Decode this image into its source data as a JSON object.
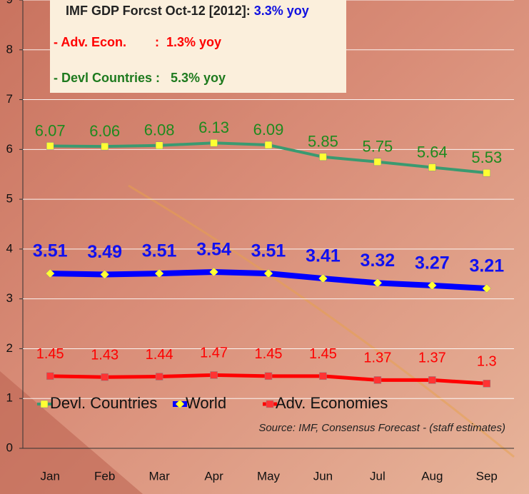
{
  "chart_data": {
    "type": "line",
    "categories": [
      "Jan",
      "Feb",
      "Mar",
      "Apr",
      "May",
      "Jun",
      "Jul",
      "Aug",
      "Sep"
    ],
    "series": [
      {
        "name": "Devl. Countries",
        "color": "#3a9a70",
        "values": [
          6.07,
          6.06,
          6.08,
          6.13,
          6.09,
          5.85,
          5.75,
          5.64,
          5.53
        ]
      },
      {
        "name": "World",
        "color": "#0000ff",
        "values": [
          3.51,
          3.49,
          3.51,
          3.54,
          3.51,
          3.41,
          3.32,
          3.27,
          3.21
        ]
      },
      {
        "name": "Adv. Economies",
        "color": "#ff0000",
        "values": [
          1.45,
          1.43,
          1.44,
          1.47,
          1.45,
          1.45,
          1.37,
          1.37,
          1.3
        ]
      }
    ],
    "ylim": [
      0,
      9
    ],
    "yticks": [
      0,
      1,
      2,
      3,
      4,
      5,
      6,
      7,
      8,
      9
    ],
    "grid": true,
    "annotations": {
      "headline": "IMF GDP Forcst Oct-12 [2012]:",
      "headline_value": "3.3% yoy",
      "adv": "- Adv. Econ.        :  1.3% yoy",
      "devl": "- Devl Countries :   5.3% yoy"
    },
    "source": "Source: IMF, Consensus Forecast - (staff estimates)"
  }
}
